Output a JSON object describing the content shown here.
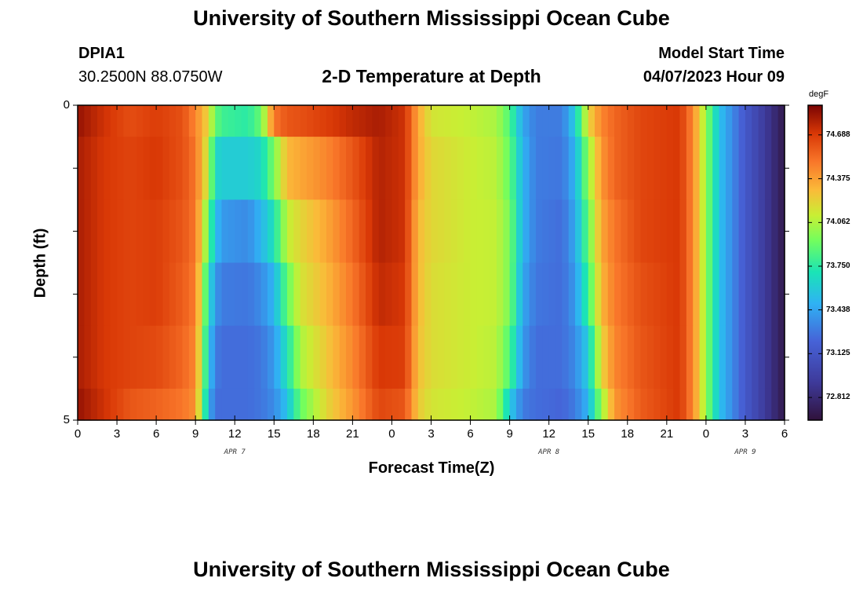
{
  "header": {
    "title_top": "University of Southern Mississippi Ocean Cube",
    "station_id": "DPIA1",
    "coordinates": "30.2500N  88.0750W",
    "chart_title": "2-D Temperature at Depth",
    "model_start_label": "Model Start Time",
    "model_start_value": "04/07/2023 Hour 09",
    "title_bottom": "University of Southern Mississippi Ocean Cube"
  },
  "chart_data": {
    "type": "heatmap",
    "title": "2-D Temperature at Depth",
    "xlabel": "Forecast Time(Z)",
    "ylabel": "Depth (ft)",
    "x_tick_labels": [
      "0",
      "3",
      "6",
      "9",
      "12",
      "15",
      "18",
      "21",
      "0",
      "3",
      "6",
      "9",
      "12",
      "15",
      "18",
      "21",
      "0",
      "3",
      "6"
    ],
    "x_date_labels": [
      {
        "text": "APR 7",
        "at_hour": 12
      },
      {
        "text": "APR 8",
        "at_hour": 36
      },
      {
        "text": "APR 9",
        "at_hour": 51
      }
    ],
    "x_range_hours": [
      0,
      54
    ],
    "y_tick_labels": [
      "0",
      "5"
    ],
    "y_range": [
      0,
      5
    ],
    "depth_levels": [
      0.25,
      0.75,
      1.75,
      2.75,
      3.75,
      4.5
    ],
    "depth_bounds": [
      0,
      0.5,
      1.5,
      2.5,
      3.5,
      4.5,
      5
    ],
    "colorbar": {
      "unit": "degF",
      "min": 72.65,
      "max": 74.9,
      "ticks": [
        "74.688",
        "74.375",
        "74.062",
        "73.750",
        "73.438",
        "73.125",
        "72.812"
      ]
    },
    "temperature_by_hour": [
      [
        0,
        74.84,
        74.8,
        74.8,
        74.8,
        74.8,
        74.84
      ],
      [
        2,
        74.72,
        74.7,
        74.7,
        74.7,
        74.7,
        74.72
      ],
      [
        4,
        74.63,
        74.66,
        74.66,
        74.66,
        74.66,
        74.6
      ],
      [
        6,
        74.68,
        74.7,
        74.68,
        74.68,
        74.64,
        74.56
      ],
      [
        8,
        74.62,
        74.62,
        74.6,
        74.58,
        74.55,
        74.5
      ],
      [
        9,
        74.45,
        74.5,
        74.5,
        74.48,
        74.45,
        74.42
      ],
      [
        10,
        74.2,
        74.1,
        73.9,
        73.7,
        73.6,
        73.5
      ],
      [
        10.5,
        73.9,
        73.65,
        73.55,
        73.4,
        73.3,
        73.25
      ],
      [
        11,
        73.8,
        73.6,
        73.4,
        73.3,
        73.25,
        73.25
      ],
      [
        13,
        73.75,
        73.6,
        73.35,
        73.28,
        73.25,
        73.25
      ],
      [
        14,
        73.9,
        73.65,
        73.5,
        73.35,
        73.28,
        73.28
      ],
      [
        15,
        74.5,
        73.95,
        73.7,
        73.5,
        73.4,
        73.35
      ],
      [
        16,
        74.6,
        74.3,
        74.1,
        73.9,
        73.7,
        73.55
      ],
      [
        17,
        74.62,
        74.35,
        74.2,
        74.15,
        74.05,
        73.9
      ],
      [
        19,
        74.68,
        74.45,
        74.35,
        74.3,
        74.25,
        74.2
      ],
      [
        21,
        74.75,
        74.6,
        74.55,
        74.5,
        74.45,
        74.4
      ],
      [
        23,
        74.8,
        74.78,
        74.78,
        74.75,
        74.7,
        74.65
      ],
      [
        25,
        74.72,
        74.72,
        74.72,
        74.7,
        74.68,
        74.6
      ],
      [
        26,
        74.35,
        74.35,
        74.3,
        74.3,
        74.28,
        74.25
      ],
      [
        27,
        74.15,
        74.2,
        74.2,
        74.18,
        74.18,
        74.15
      ],
      [
        30,
        74.1,
        74.12,
        74.12,
        74.12,
        74.12,
        74.1
      ],
      [
        32,
        74.05,
        74.08,
        74.1,
        74.1,
        74.08,
        74.05
      ],
      [
        33,
        73.85,
        73.9,
        73.95,
        73.95,
        73.85,
        73.6
      ],
      [
        34,
        73.45,
        73.5,
        73.5,
        73.45,
        73.4,
        73.3
      ],
      [
        35,
        73.3,
        73.3,
        73.3,
        73.28,
        73.25,
        73.25
      ],
      [
        37,
        73.3,
        73.28,
        73.25,
        73.25,
        73.25,
        73.22
      ],
      [
        38,
        73.6,
        73.5,
        73.45,
        73.4,
        73.35,
        73.3
      ],
      [
        39,
        74.2,
        74.0,
        73.9,
        73.8,
        73.6,
        73.5
      ],
      [
        40,
        74.45,
        74.4,
        74.35,
        74.3,
        74.2,
        74.0
      ],
      [
        41,
        74.55,
        74.55,
        74.5,
        74.48,
        74.45,
        74.4
      ],
      [
        43,
        74.65,
        74.65,
        74.65,
        74.62,
        74.6,
        74.58
      ],
      [
        46,
        74.7,
        74.7,
        74.7,
        74.7,
        74.7,
        74.7
      ],
      [
        47,
        74.45,
        74.45,
        74.45,
        74.45,
        74.45,
        74.45
      ],
      [
        48,
        74.0,
        74.0,
        74.0,
        74.0,
        74.0,
        74.0
      ],
      [
        49,
        73.55,
        73.55,
        73.55,
        73.55,
        73.55,
        73.55
      ],
      [
        51,
        73.15,
        73.15,
        73.15,
        73.15,
        73.15,
        73.15
      ],
      [
        53,
        72.85,
        72.85,
        72.85,
        72.85,
        72.85,
        72.85
      ],
      [
        54,
        72.7,
        72.7,
        72.7,
        72.7,
        72.7,
        72.7
      ]
    ]
  }
}
